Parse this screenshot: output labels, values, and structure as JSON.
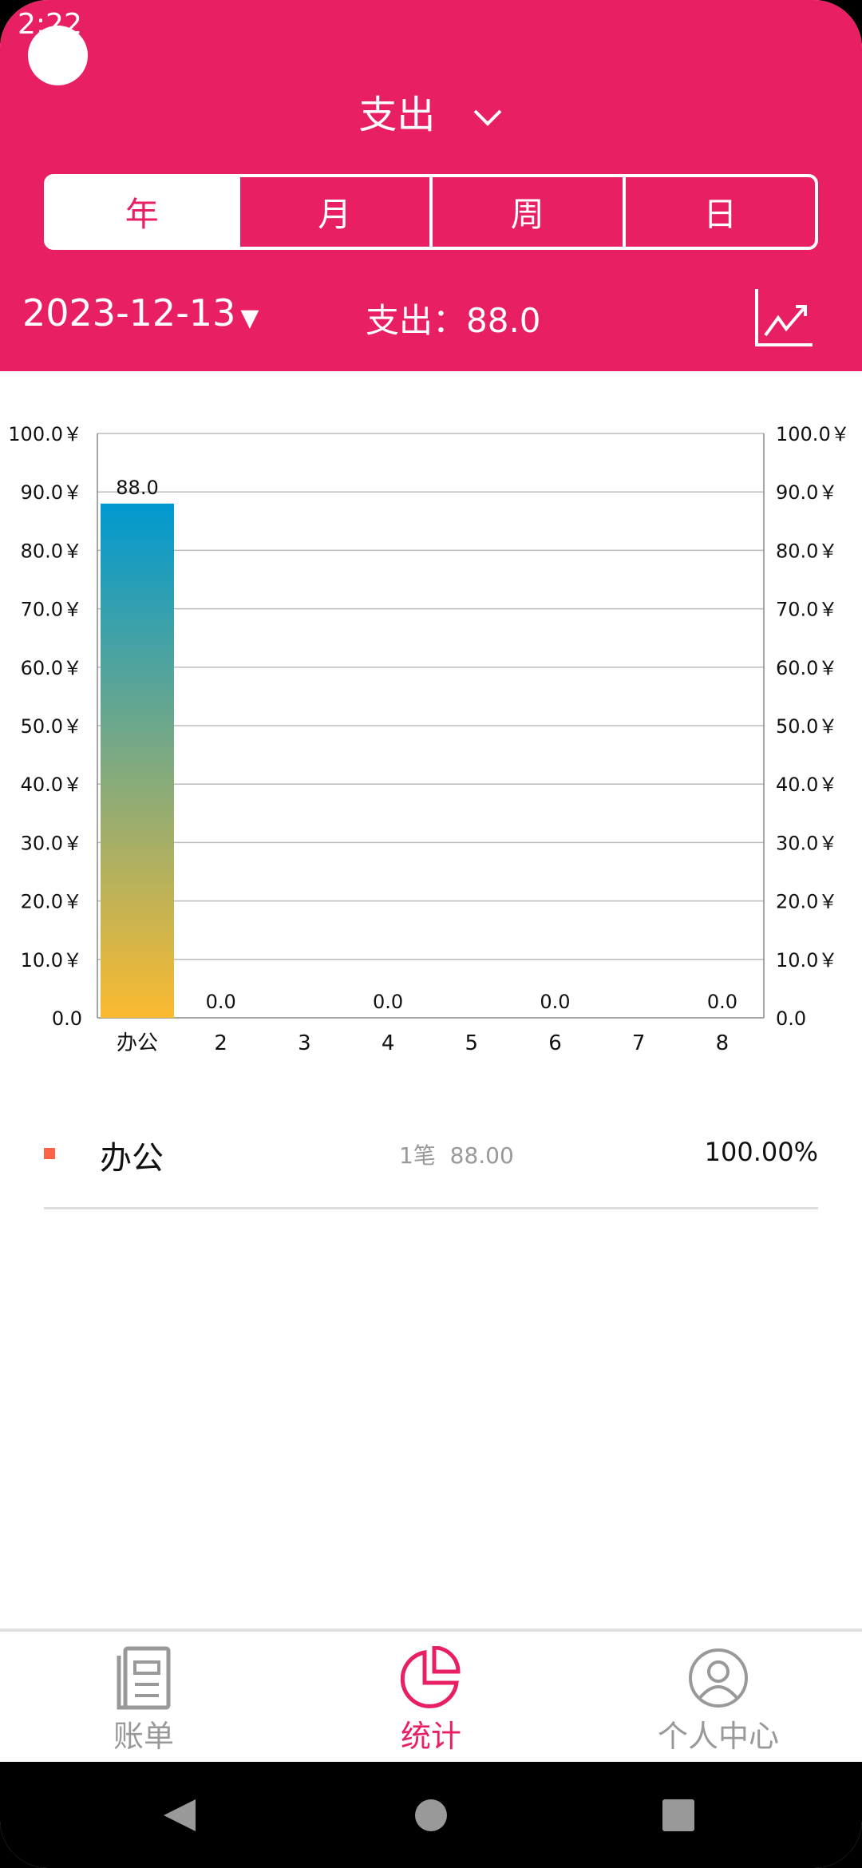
{
  "status": {
    "time": "2:22"
  },
  "header": {
    "title": "支出",
    "tabs": [
      "年",
      "月",
      "周",
      "日"
    ],
    "active_tab": 0,
    "date": "2023-12-13",
    "total": "支出：88.0",
    "accent": "#E91F63"
  },
  "chart_data": {
    "type": "bar",
    "categories": [
      "办公",
      "2",
      "3",
      "4",
      "5",
      "6",
      "7",
      "8"
    ],
    "values": [
      88.0,
      0.0,
      0.0,
      0.0,
      0.0,
      0.0,
      0.0,
      0.0
    ],
    "data_labels": [
      "88.0",
      "0.0",
      "",
      "0.0",
      "",
      "0.0",
      "",
      "0.0"
    ],
    "ylim": [
      0,
      100
    ],
    "yticks": [
      "0.0",
      "10.0￥",
      "20.0￥",
      "30.0￥",
      "40.0￥",
      "50.0￥",
      "60.0￥",
      "70.0￥",
      "80.0￥",
      "90.0￥",
      "100.0￥"
    ],
    "grid": true,
    "bar_gradient": [
      "#FBBA30",
      "#0099D0"
    ]
  },
  "list": [
    {
      "category": "办公",
      "count": "1笔",
      "amount": "88.00",
      "percent": "100.00%",
      "color": "#FF6347"
    }
  ],
  "nav": {
    "items": [
      "账单",
      "统计",
      "个人中心"
    ],
    "active": 1
  }
}
